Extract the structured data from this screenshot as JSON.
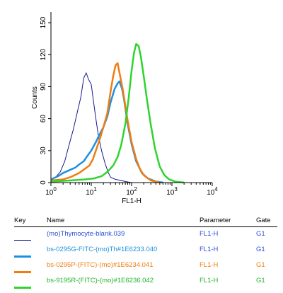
{
  "chart_data": {
    "type": "line",
    "xscale": "log",
    "xlim": [
      1,
      10000
    ],
    "ylim": [
      0,
      160
    ],
    "xlabel": "FL1-H",
    "ylabel": "Counts",
    "xticks": [
      {
        "value": 1,
        "base": "10",
        "exp": "0"
      },
      {
        "value": 10,
        "base": "10",
        "exp": "1"
      },
      {
        "value": 100,
        "base": "10",
        "exp": "2"
      },
      {
        "value": 1000,
        "base": "10",
        "exp": "3"
      },
      {
        "value": 10000,
        "base": "10",
        "exp": "4"
      }
    ],
    "yticks": [
      "0",
      "30",
      "60",
      "90",
      "120",
      "150"
    ],
    "series": [
      {
        "name": "(mo)Thymocyte-blank.039",
        "color": "#1a1a8c",
        "width": 1,
        "x": [
          1.0,
          1.3,
          1.7,
          2.2,
          2.8,
          3.6,
          4.5,
          5.5,
          6.5,
          7.5,
          8.5,
          10,
          11,
          13,
          15,
          18,
          22,
          26,
          30,
          40,
          55,
          70,
          100
        ],
        "y": [
          3,
          5,
          10,
          20,
          35,
          50,
          66,
          80,
          98,
          103,
          97,
          92,
          80,
          60,
          44,
          30,
          18,
          10,
          5,
          3,
          2,
          1,
          0
        ]
      },
      {
        "name": "bs-0295G-FITC-(mo)Th#1E6233.040",
        "color": "#1e90e0",
        "width": 2.5,
        "x": [
          1.0,
          1.5,
          2.0,
          3.0,
          4.0,
          5.0,
          6.5,
          8.0,
          10,
          13,
          16,
          20,
          25,
          30,
          38,
          45,
          50,
          58,
          65,
          80,
          100,
          130,
          180,
          250,
          400,
          600
        ],
        "y": [
          3,
          6,
          9,
          12,
          14,
          17,
          20,
          25,
          30,
          38,
          45,
          52,
          62,
          75,
          88,
          93,
          95,
          88,
          78,
          55,
          36,
          20,
          9,
          4,
          1,
          0
        ]
      },
      {
        "name": "bs-0295P-(FITC)-(mo)#1E6234.041",
        "color": "#f07d12",
        "width": 2.5,
        "x": [
          1.0,
          2.0,
          3.0,
          5.0,
          7.0,
          9.0,
          11,
          13,
          16,
          20,
          25,
          30,
          35,
          40,
          45,
          52,
          60,
          70,
          80,
          100,
          130,
          160,
          200,
          300,
          500
        ],
        "y": [
          2,
          3,
          5,
          9,
          13,
          16,
          22,
          30,
          40,
          52,
          65,
          85,
          100,
          110,
          112,
          100,
          88,
          72,
          58,
          38,
          22,
          13,
          7,
          2,
          0
        ]
      },
      {
        "name": "bs-9195R-(FITC)-(mo)#1E6236.042",
        "color": "#2ed42e",
        "width": 2.5,
        "x": [
          1.0,
          3.0,
          7.0,
          12,
          18,
          25,
          35,
          45,
          55,
          70,
          85,
          100,
          115,
          130,
          150,
          170,
          200,
          240,
          300,
          380,
          500,
          650,
          850,
          1200,
          2000
        ],
        "y": [
          1,
          2,
          3,
          4,
          6,
          10,
          16,
          24,
          35,
          55,
          80,
          105,
          122,
          130,
          128,
          118,
          100,
          78,
          54,
          32,
          15,
          7,
          3,
          1,
          0
        ]
      }
    ]
  },
  "legend": {
    "headers": {
      "key": "Key",
      "name": "Name",
      "parameter": "Parameter",
      "gate": "Gate"
    },
    "rows": [
      {
        "name": "(mo)Thymocyte-blank.039",
        "parameter": "FL1-H",
        "gate": "G1",
        "color": "#1a1a8c"
      },
      {
        "name": "bs-0295G-FITC-(mo)Th#1E6233.040",
        "parameter": "FL1-H",
        "gate": "G1",
        "color": "#1e90e0"
      },
      {
        "name": "bs-0295P-(FITC)-(mo)#1E6234.041",
        "parameter": "FL1-H",
        "gate": "G1",
        "color": "#f07d12"
      },
      {
        "name": "bs-9195R-(FITC)-(mo)#1E6236.042",
        "parameter": "FL1-H",
        "gate": "G1",
        "color": "#2ed42e"
      }
    ]
  }
}
